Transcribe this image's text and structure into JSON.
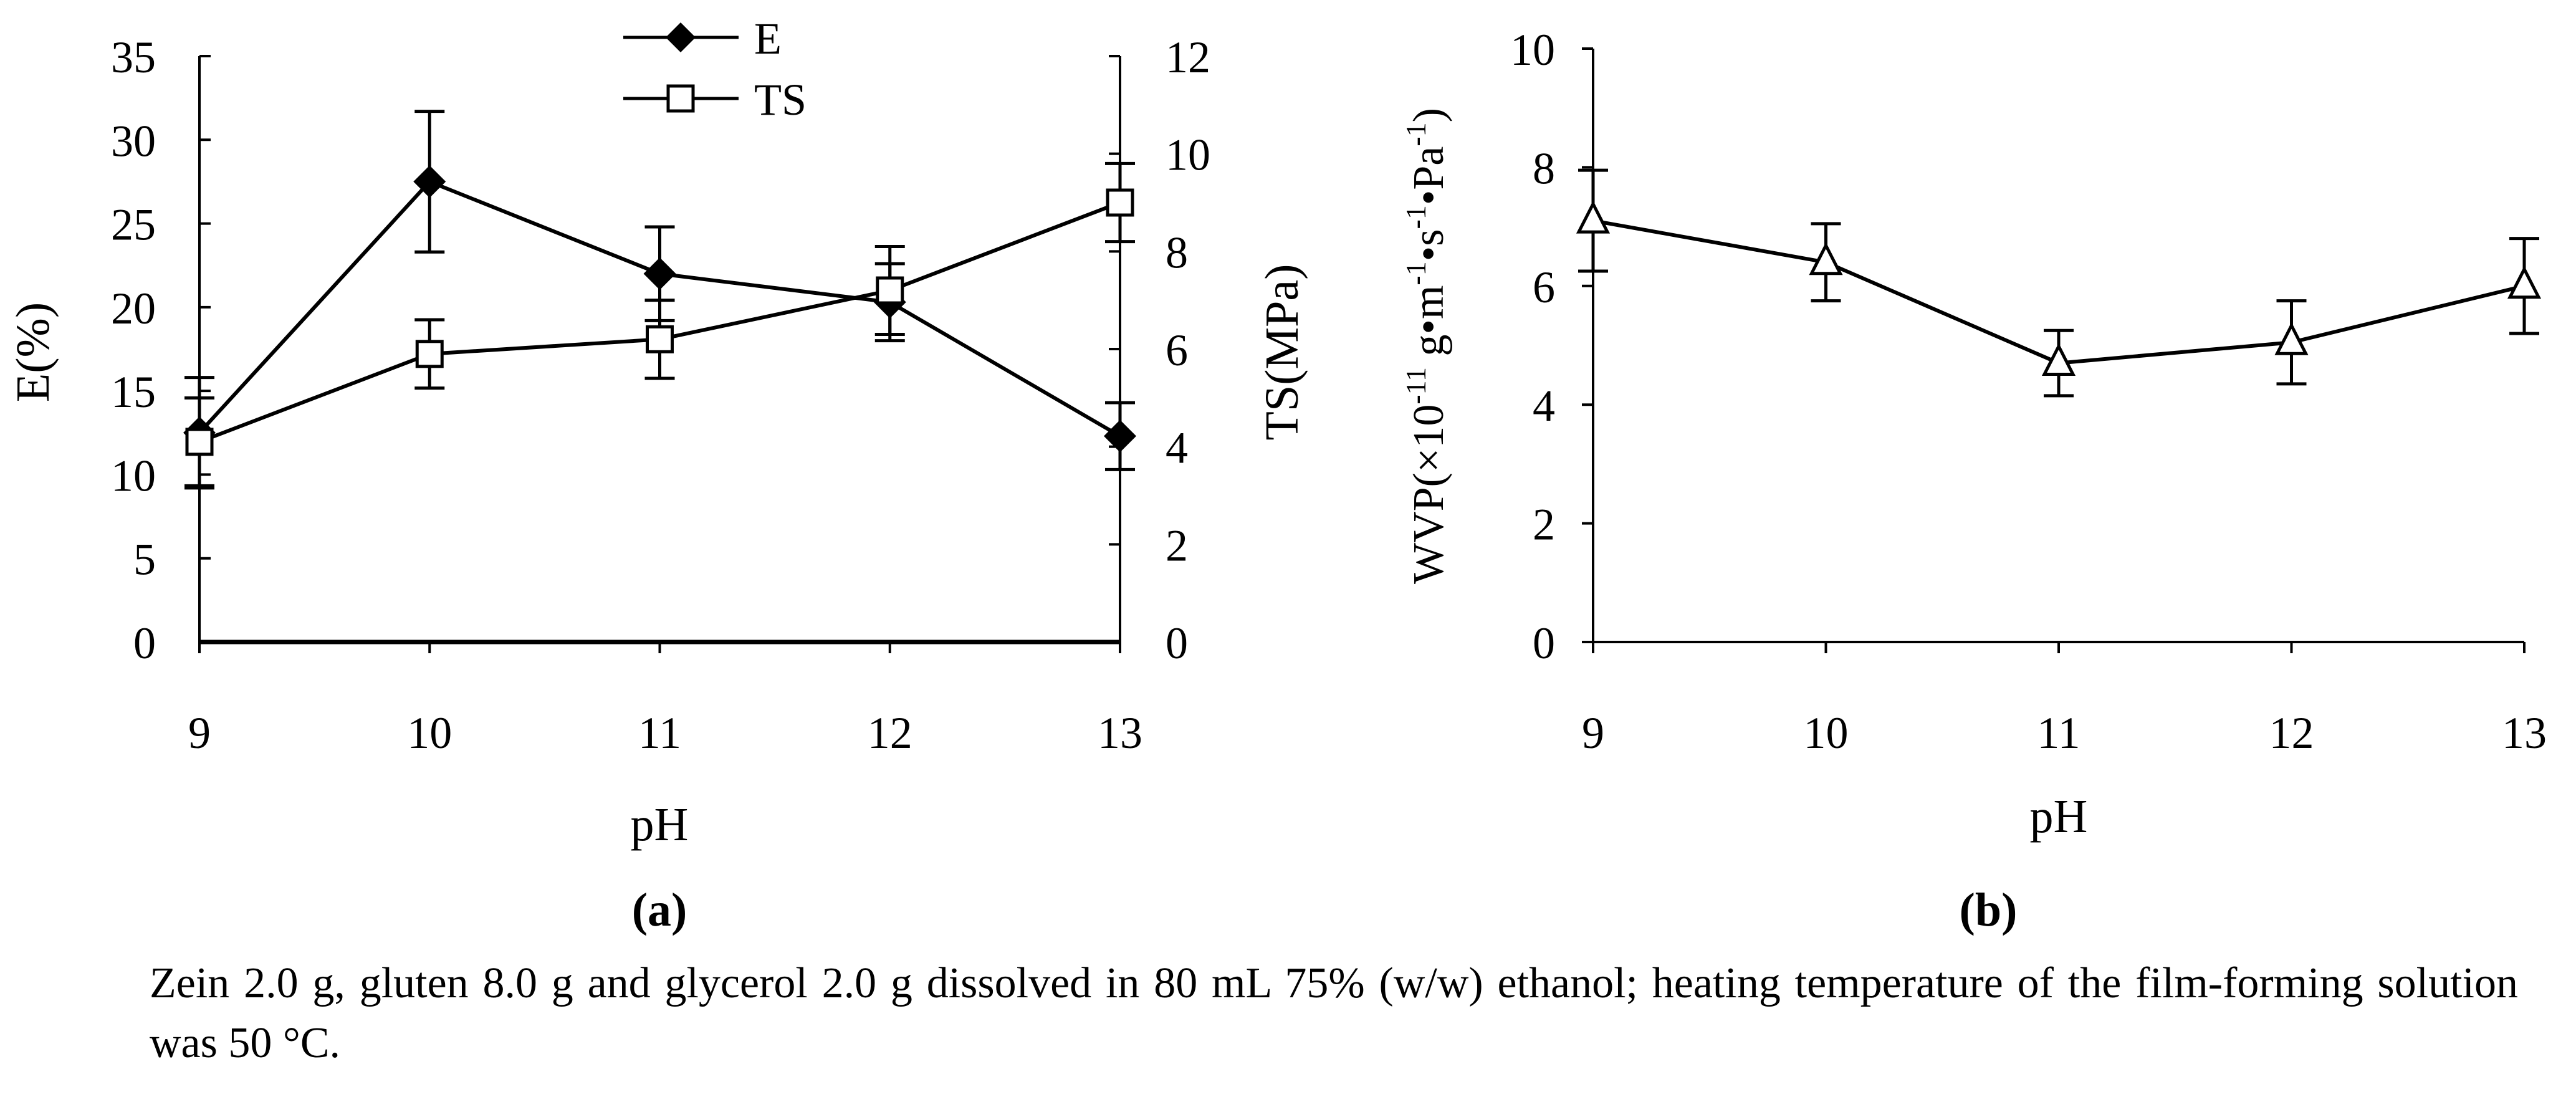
{
  "panel_labels": [
    "(a)",
    "(b)"
  ],
  "caption": "Zein 2.0 g, gluten 8.0 g and glycerol 2.0 g dissolved in 80 mL 75% (w/w) ethanol; heating temperature of the film-forming solution was 50 °C.",
  "chart_data": [
    {
      "type": "line",
      "panel": "(a)",
      "xlabel": "pH",
      "ylabel": "E(%)",
      "y2label": "TS(MPa)",
      "x": [
        9,
        10,
        11,
        12,
        13
      ],
      "xticks": [
        "9",
        "10",
        "11",
        "12",
        "13"
      ],
      "ylim": [
        0,
        35
      ],
      "yticks": [
        0,
        5,
        10,
        15,
        20,
        25,
        30,
        35
      ],
      "y2lim": [
        0,
        12
      ],
      "y2ticks": [
        0,
        2,
        4,
        6,
        8,
        10,
        12
      ],
      "grid": false,
      "legend": "top-center",
      "series": [
        {
          "name": "E",
          "axis": "left",
          "marker": "filled-diamond",
          "values": [
            12.5,
            27.5,
            22.0,
            20.3,
            12.3
          ],
          "errors": [
            3.3,
            4.2,
            2.8,
            2.3,
            2.0
          ]
        },
        {
          "name": "TS",
          "axis": "right",
          "marker": "open-square",
          "values": [
            4.1,
            5.9,
            6.2,
            7.2,
            9.0
          ],
          "errors": [
            0.9,
            0.7,
            0.8,
            0.9,
            0.8
          ]
        }
      ]
    },
    {
      "type": "line",
      "panel": "(b)",
      "xlabel": "pH",
      "ylabel": "WVP(×10-11 g•m-1•s-1•Pa-1)",
      "x": [
        9,
        10,
        11,
        12,
        13
      ],
      "xticks": [
        "9",
        "10",
        "11",
        "12",
        "13"
      ],
      "ylim": [
        0,
        10
      ],
      "yticks": [
        0,
        2,
        4,
        6,
        8,
        10
      ],
      "grid": false,
      "series": [
        {
          "marker": "open-triangle",
          "values": [
            7.1,
            6.4,
            4.7,
            5.05,
            6.0
          ],
          "errors": [
            0.85,
            0.65,
            0.55,
            0.7,
            0.8
          ]
        }
      ]
    }
  ]
}
